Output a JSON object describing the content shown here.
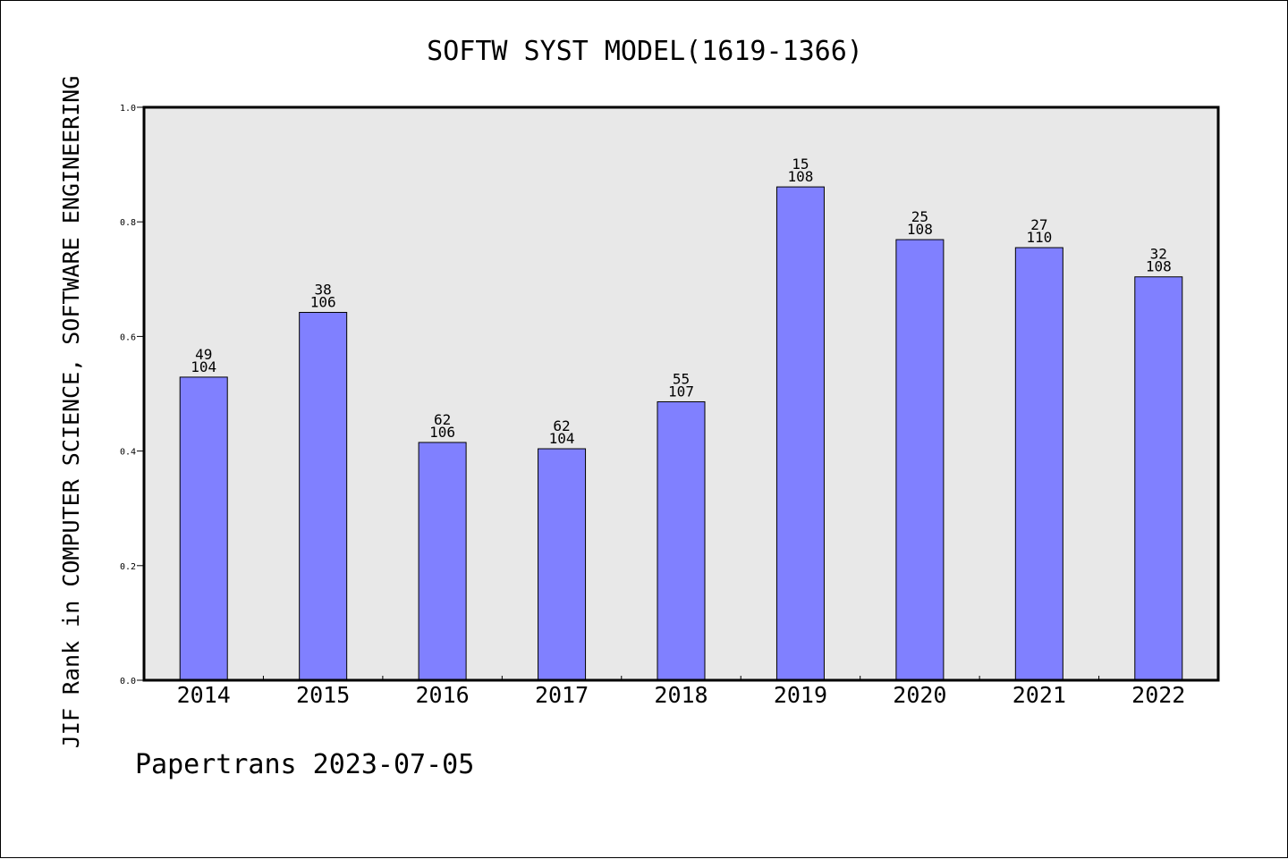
{
  "chart_data": {
    "type": "bar",
    "title": "SOFTW SYST MODEL(1619-1366)",
    "ylabel": "JIF Rank in COMPUTER SCIENCE, SOFTWARE ENGINEERING",
    "xlabel": "",
    "ylim": [
      0.0,
      1.0
    ],
    "yticks": [
      "0.0",
      "0.2",
      "0.4",
      "0.6",
      "0.8",
      "1.0"
    ],
    "categories": [
      "2014",
      "2015",
      "2016",
      "2017",
      "2018",
      "2019",
      "2020",
      "2021",
      "2022"
    ],
    "values": [
      0.529,
      0.642,
      0.415,
      0.404,
      0.486,
      0.861,
      0.769,
      0.755,
      0.704
    ],
    "rank": [
      "49",
      "38",
      "62",
      "62",
      "55",
      "15",
      "25",
      "27",
      "32"
    ],
    "total": [
      "104",
      "106",
      "106",
      "104",
      "107",
      "108",
      "108",
      "110",
      "108"
    ],
    "bar_color": "#8080ff",
    "plot_background": "#e8e8e8",
    "grid": false,
    "legend": "none"
  },
  "footer": "Papertrans 2023-07-05"
}
